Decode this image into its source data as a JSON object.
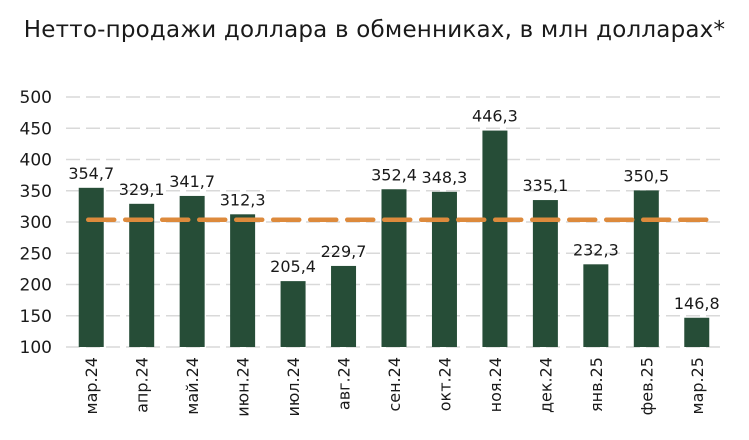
{
  "chart_data": {
    "type": "bar",
    "title": "Нетто-продажи доллара в обменниках, в млн долларах*",
    "categories": [
      "мар.24",
      "апр.24",
      "май.24",
      "июн.24",
      "июл.24",
      "авг.24",
      "сен.24",
      "окт.24",
      "ноя.24",
      "дек.24",
      "янв.25",
      "фев.25",
      "мар.25"
    ],
    "values": [
      354.7,
      329.1,
      341.7,
      312.3,
      205.4,
      229.7,
      352.4,
      348.3,
      446.3,
      335.1,
      232.3,
      350.5,
      146.8
    ],
    "value_labels": [
      "354,7",
      "329,1",
      "341,7",
      "312,3",
      "205,4",
      "229,7",
      "352,4",
      "348,3",
      "446,3",
      "335,1",
      "232,3",
      "350,5",
      "146,8"
    ],
    "average_line": 303.6,
    "ylim": [
      100,
      500
    ],
    "yticks": [
      100,
      150,
      200,
      250,
      300,
      350,
      400,
      450,
      500
    ],
    "grid": true,
    "legend": "none",
    "colors": {
      "bar": "#264d37",
      "average_line": "#dd8a3c",
      "grid": "#d9d9d9"
    }
  }
}
